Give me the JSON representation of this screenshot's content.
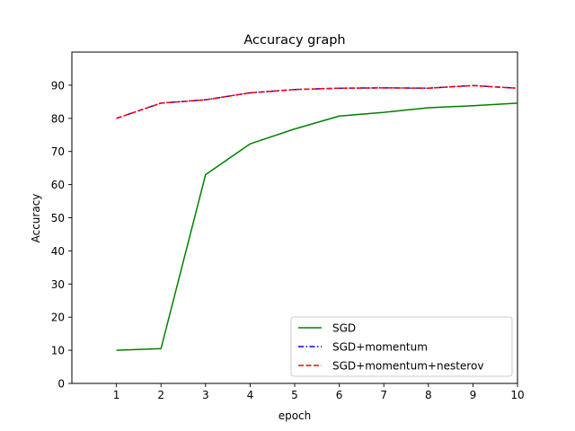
{
  "chart_data": {
    "type": "line",
    "title": "Accuracy graph",
    "xlabel": "epoch",
    "ylabel": "Accuracy",
    "x": [
      1,
      2,
      3,
      4,
      5,
      6,
      7,
      8,
      9,
      10
    ],
    "xlim": [
      0,
      10
    ],
    "ylim": [
      0,
      100
    ],
    "xticks": [
      "1",
      "2",
      "3",
      "4",
      "5",
      "6",
      "7",
      "8",
      "9",
      "10"
    ],
    "yticks": [
      "0",
      "10",
      "20",
      "30",
      "40",
      "50",
      "60",
      "70",
      "80",
      "90"
    ],
    "grid": false,
    "legend_position": "lower-right",
    "series": [
      {
        "name": "SGD",
        "color": "#008000",
        "style": "solid",
        "values": [
          10.0,
          10.5,
          63.0,
          72.3,
          76.8,
          80.7,
          81.8,
          83.2,
          83.8,
          84.6
        ]
      },
      {
        "name": "SGD+momentum",
        "color": "#0000ff",
        "style": "dashdot",
        "values": [
          80.0,
          84.6,
          85.6,
          87.7,
          88.7,
          89.1,
          89.2,
          89.1,
          89.9,
          89.1
        ]
      },
      {
        "name": "SGD+momentum+nesterov",
        "color": "#ff0000",
        "style": "dashed",
        "values": [
          80.0,
          84.6,
          85.6,
          87.7,
          88.7,
          89.1,
          89.2,
          89.1,
          89.9,
          89.1
        ]
      }
    ]
  }
}
